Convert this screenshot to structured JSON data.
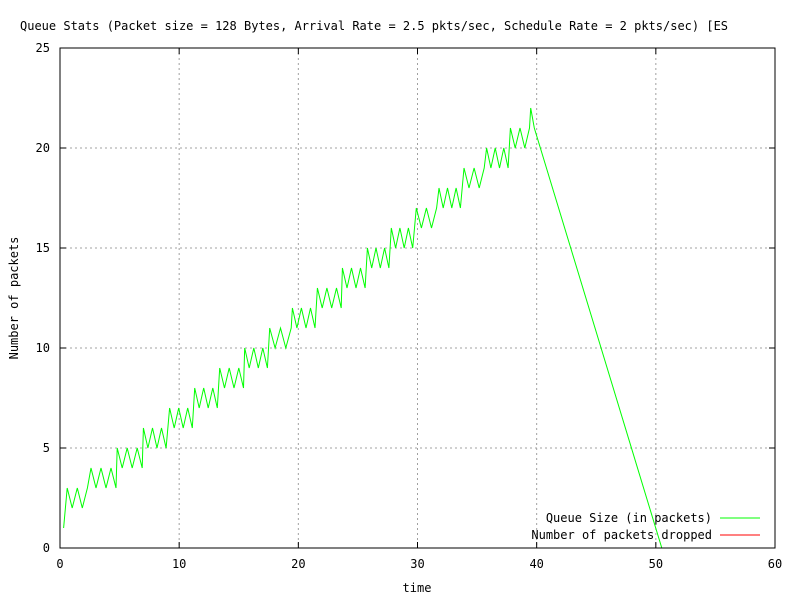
{
  "chart_data": {
    "type": "line",
    "title": "Queue Stats (Packet size = 128 Bytes, Arrival Rate = 2.5 pkts/sec, Schedule Rate = 2 pkts/sec) [ES",
    "xlabel": "time",
    "ylabel": "Number of packets",
    "xlim": [
      0,
      60
    ],
    "ylim": [
      0,
      25
    ],
    "xticks": [
      0,
      10,
      20,
      30,
      40,
      50,
      60
    ],
    "yticks": [
      0,
      5,
      10,
      15,
      20,
      25
    ],
    "grid": true,
    "legend_position": "bottom-right",
    "series": [
      {
        "name": "Queue Size (in packets)",
        "color": "#00ff00",
        "pattern": "sawtooth",
        "start": [
          0.3,
          1
        ],
        "levels": [
          {
            "x0": 0.6,
            "x1": 2.3,
            "low": 2,
            "high": 3
          },
          {
            "x0": 2.6,
            "x1": 4.7,
            "low": 3,
            "high": 4
          },
          {
            "x0": 4.8,
            "x1": 6.9,
            "low": 4,
            "high": 5
          },
          {
            "x0": 7.0,
            "x1": 8.9,
            "low": 5,
            "high": 6
          },
          {
            "x0": 9.2,
            "x1": 11.1,
            "low": 6,
            "high": 7
          },
          {
            "x0": 11.3,
            "x1": 13.2,
            "low": 7,
            "high": 8
          },
          {
            "x0": 13.4,
            "x1": 15.4,
            "low": 8,
            "high": 9
          },
          {
            "x0": 15.5,
            "x1": 17.4,
            "low": 9,
            "high": 10
          },
          {
            "x0": 17.6,
            "x1": 19.4,
            "low": 10,
            "high": 11
          },
          {
            "x0": 19.5,
            "x1": 21.4,
            "low": 11,
            "high": 12
          },
          {
            "x0": 21.6,
            "x1": 23.6,
            "low": 12,
            "high": 13
          },
          {
            "x0": 23.7,
            "x1": 25.6,
            "low": 13,
            "high": 14
          },
          {
            "x0": 25.8,
            "x1": 27.6,
            "low": 14,
            "high": 15
          },
          {
            "x0": 27.8,
            "x1": 29.6,
            "low": 15,
            "high": 16
          },
          {
            "x0": 29.9,
            "x1": 31.6,
            "low": 16,
            "high": 17
          },
          {
            "x0": 31.8,
            "x1": 33.6,
            "low": 17,
            "high": 18
          },
          {
            "x0": 33.9,
            "x1": 35.6,
            "low": 18,
            "high": 19
          },
          {
            "x0": 35.8,
            "x1": 37.6,
            "low": 19,
            "high": 20
          },
          {
            "x0": 37.8,
            "x1": 39.4,
            "low": 20,
            "high": 21
          },
          {
            "x0": 39.5,
            "x1": 39.8,
            "low": 21,
            "high": 22
          }
        ],
        "decline": [
          [
            39.8,
            21
          ],
          [
            50.5,
            0
          ]
        ]
      },
      {
        "name": "Number of packets dropped",
        "color": "#ff0000",
        "points": []
      }
    ]
  }
}
